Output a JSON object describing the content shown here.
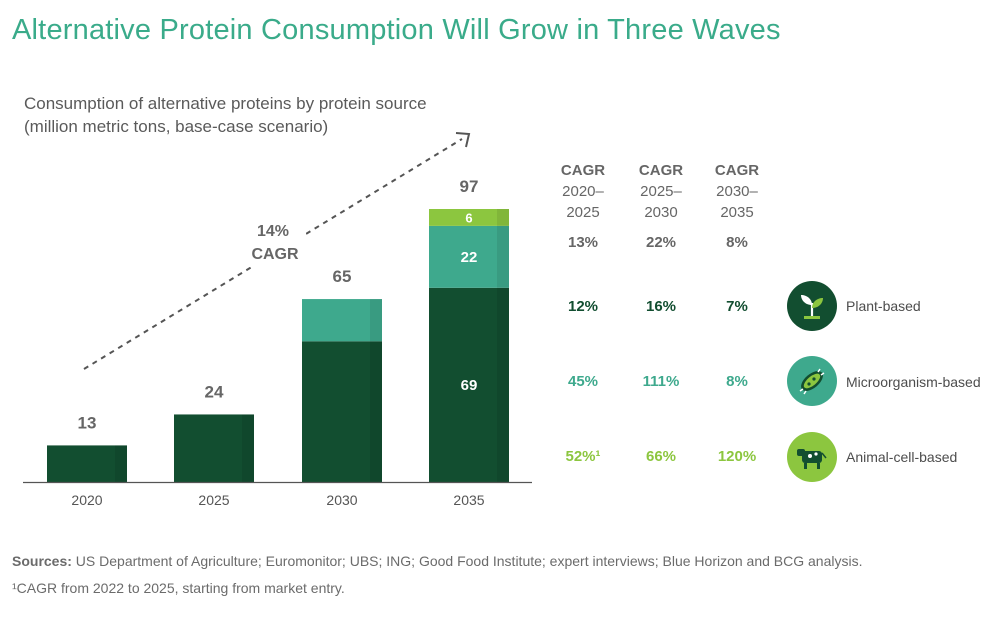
{
  "title": "Alternative Protein Consumption Will Grow in Three Waves",
  "subtitle_line1": "Consumption of alternative proteins by protein source",
  "subtitle_line2": "(million metric tons, base-case scenario)",
  "arrow_label_line1": "14%",
  "arrow_label_line2": "CAGR",
  "colors": {
    "plant": "#124e30",
    "micro": "#3ea98d",
    "animal": "#8cc63f",
    "axis": "#555555",
    "total_label": "#666666"
  },
  "chart_data": {
    "type": "bar",
    "stacked": true,
    "categories": [
      "2020",
      "2025",
      "2030",
      "2035"
    ],
    "series": [
      {
        "name": "Plant-based",
        "values": [
          13,
          24,
          50,
          69
        ]
      },
      {
        "name": "Microorganism-based",
        "values": [
          0,
          0,
          15,
          22
        ]
      },
      {
        "name": "Animal-cell-based",
        "values": [
          0,
          0,
          0,
          6
        ]
      }
    ],
    "totals": [
      13,
      24,
      65,
      97
    ],
    "segment_labels": [
      {
        "category": "2035",
        "series": "Plant-based",
        "text": "69"
      },
      {
        "category": "2035",
        "series": "Microorganism-based",
        "text": "22"
      },
      {
        "category": "2035",
        "series": "Animal-cell-based",
        "text": "6"
      }
    ],
    "ylim": [
      0,
      97
    ],
    "grid": false
  },
  "cagr_table": {
    "header_label": "CAGR",
    "periods": [
      "2020–\n2025",
      "2025–\n2030",
      "2030–\n2035"
    ],
    "total_row": [
      "13%",
      "22%",
      "8%"
    ],
    "rows": [
      {
        "source": "Plant-based",
        "icon": "plant-sprout-icon",
        "values": [
          "12%",
          "16%",
          "7%"
        ]
      },
      {
        "source": "Microorganism-based",
        "icon": "microorganism-icon",
        "values": [
          "45%",
          "111%",
          "8%"
        ]
      },
      {
        "source": "Animal-cell-based",
        "icon": "cow-icon",
        "values": [
          "52%¹",
          "66%",
          "120%"
        ]
      }
    ]
  },
  "sources_label": "Sources:",
  "sources_text": " US Department of Agriculture; Euromonitor; UBS; ING; Good Food Institute; expert interviews; Blue Horizon and BCG analysis.",
  "footnote": "¹CAGR from 2022 to 2025, starting from market entry."
}
